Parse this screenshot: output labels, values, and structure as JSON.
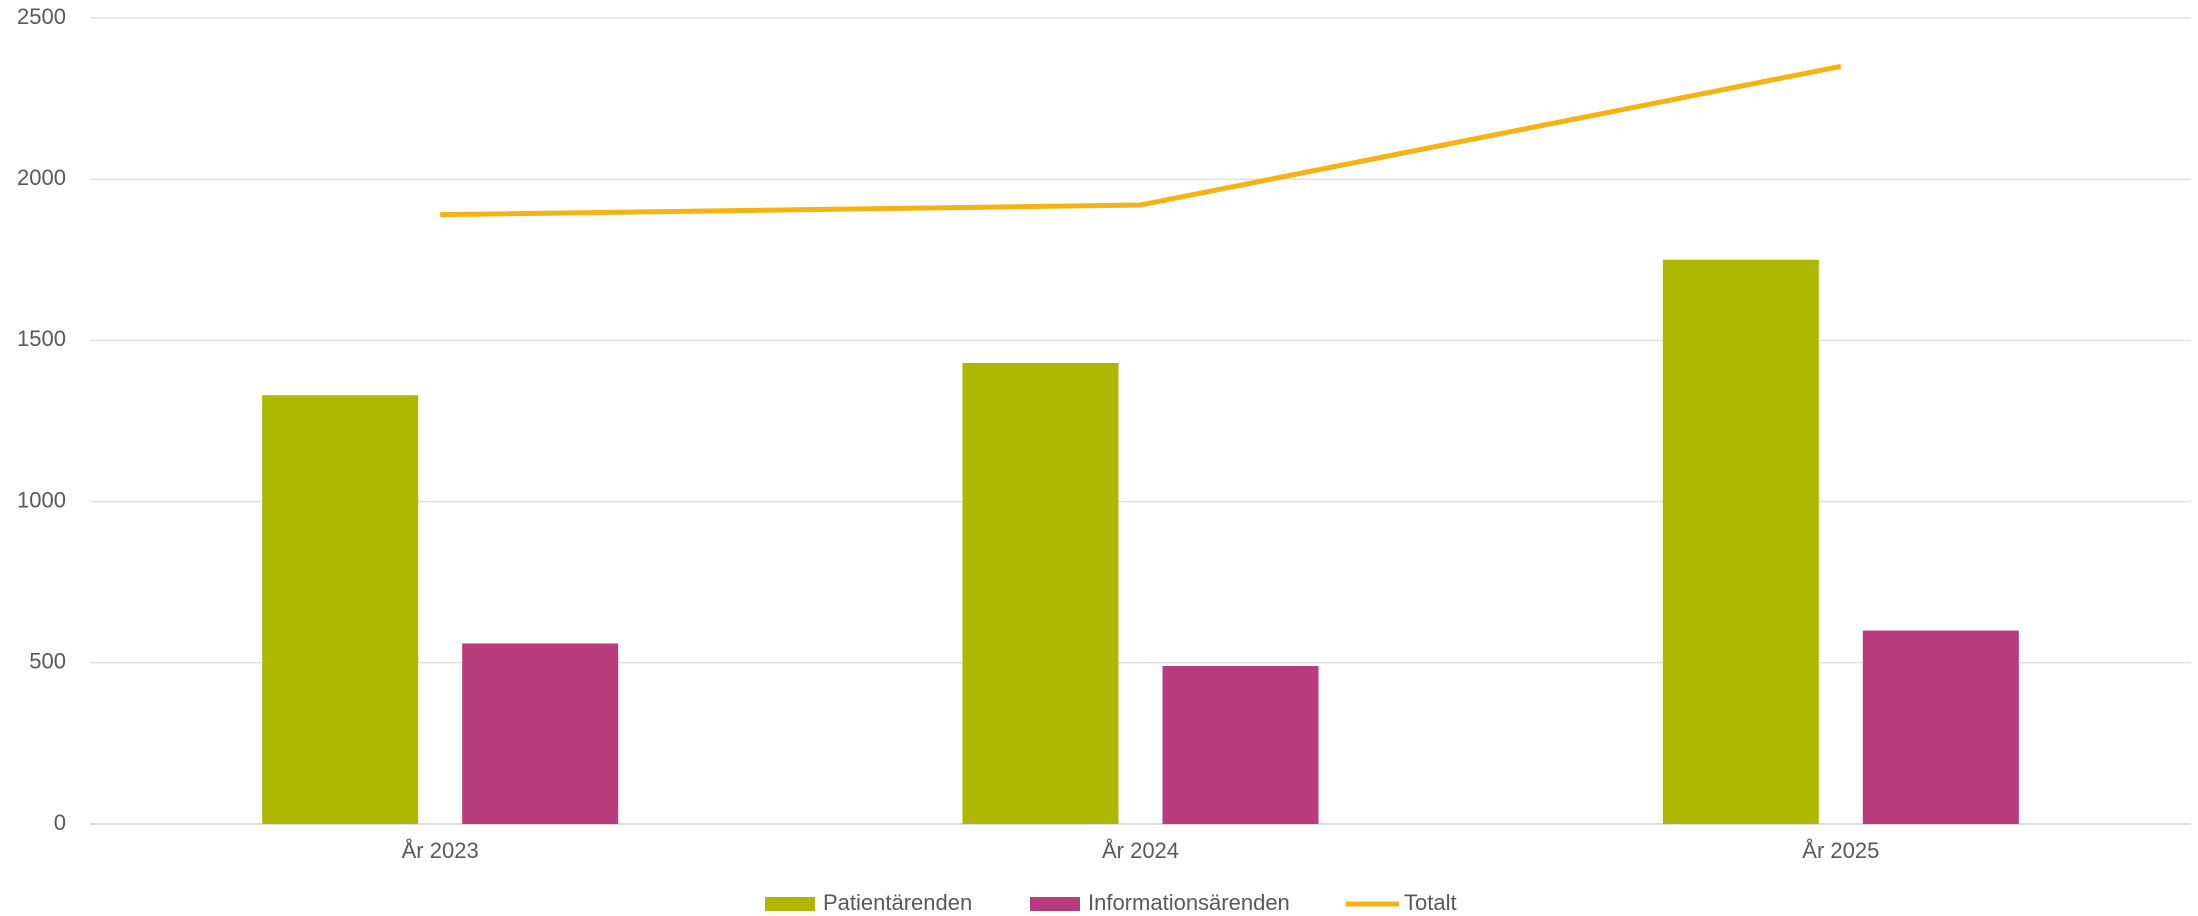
{
  "chart_data": {
    "type": "bar_line",
    "categories": [
      "År 2023",
      "År 2024",
      "År 2025"
    ],
    "series": [
      {
        "name": "Patientärenden",
        "color": "#afb800",
        "type": "bar",
        "values": [
          1330,
          1430,
          1750
        ]
      },
      {
        "name": "Informationsärenden",
        "color": "#b83b7d",
        "type": "bar",
        "values": [
          560,
          490,
          600
        ]
      },
      {
        "name": "Totalt",
        "color": "#f5b210",
        "type": "line",
        "values": [
          1890,
          1920,
          2350
        ]
      }
    ],
    "ylim": [
      0,
      2500
    ],
    "yticks": [
      0,
      500,
      1000,
      1500,
      2000,
      2500
    ],
    "grid": true,
    "legend": "bottom"
  }
}
